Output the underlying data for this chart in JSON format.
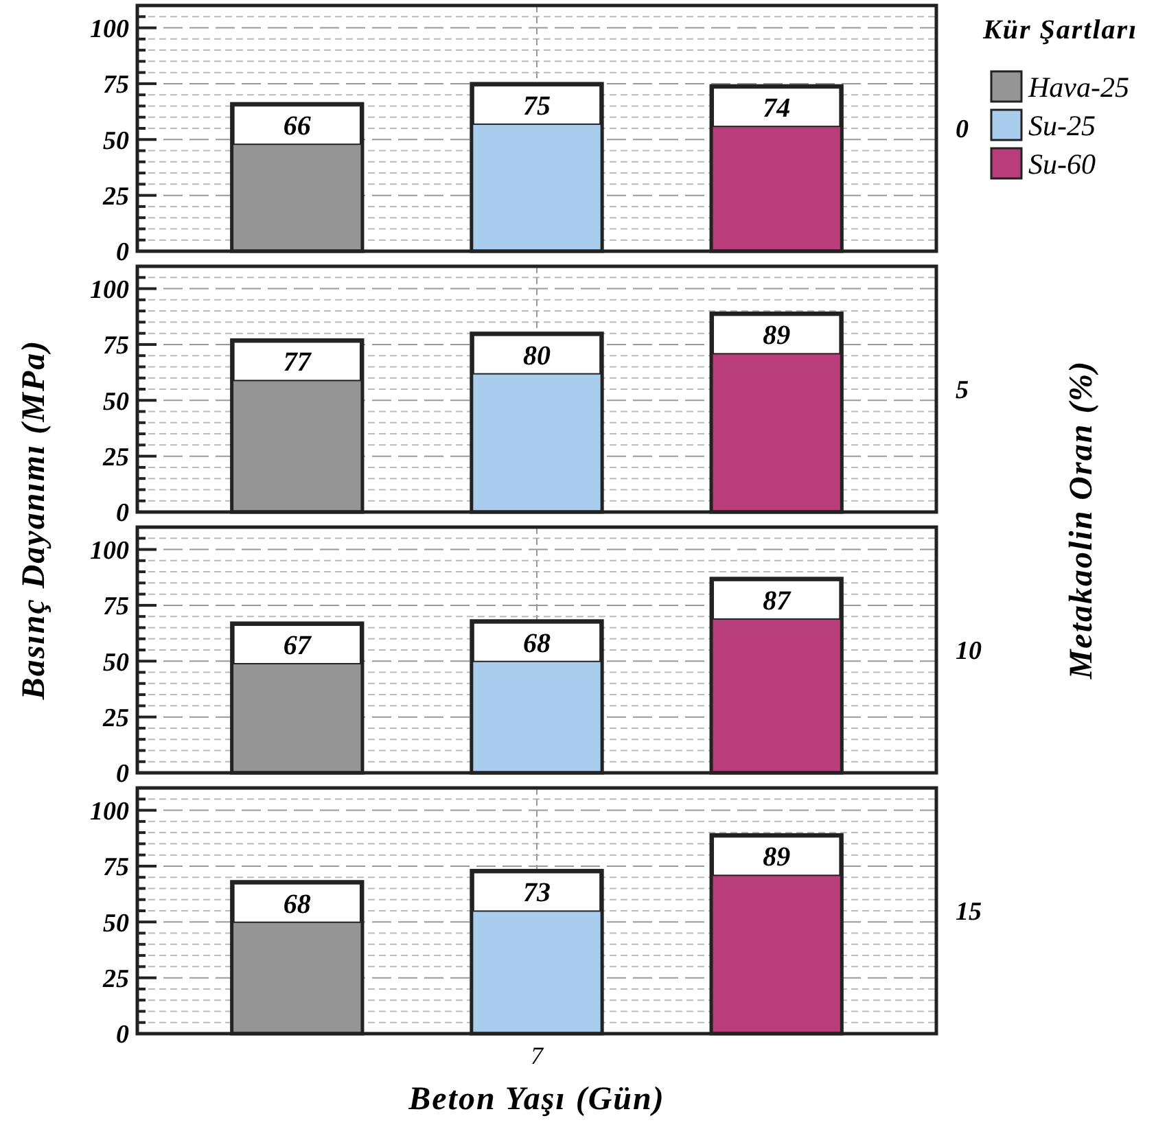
{
  "chart_data": [
    {
      "type": "bar",
      "annotations": [
        "0"
      ],
      "ylabel": "Basınç Dayanımı  (MPa)",
      "y2label": "Metakaolin Oran (%)",
      "legend_title": "Kür Şartları",
      "legend": "right",
      "categories": [
        null
      ],
      "series": [
        {
          "name": "Hava-25",
          "color": "#959595",
          "values": [
            66
          ]
        },
        {
          "name": "Su-25",
          "color": "#aacdee",
          "values": [
            75
          ]
        },
        {
          "name": "Su-60",
          "color": "#b83d7a",
          "values": [
            74
          ]
        }
      ],
      "ylim": [
        0,
        110
      ],
      "yticks": [
        0,
        {
          "value": 5,
          "label": null
        },
        {
          "value": 10,
          "label": null
        },
        {
          "value": 15,
          "label": null
        },
        {
          "value": 20,
          "label": null
        },
        25,
        {
          "value": 30,
          "label": null
        },
        {
          "value": 35,
          "label": null
        },
        {
          "value": 40,
          "label": null
        },
        {
          "value": 45,
          "label": null
        },
        50,
        {
          "value": 55,
          "label": null
        },
        {
          "value": 60,
          "label": null
        },
        {
          "value": 65,
          "label": null
        },
        {
          "value": 70,
          "label": null
        },
        75,
        {
          "value": 80,
          "label": null
        },
        {
          "value": 85,
          "label": null
        },
        {
          "value": 90,
          "label": null
        },
        {
          "value": 95,
          "label": null
        },
        100,
        {
          "value": 105,
          "label": null
        }
      ],
      "grid": true,
      "data_labels": true,
      "tick_labels": "y"
    },
    {
      "type": "bar",
      "annotations": [
        "5"
      ],
      "categories": [
        null
      ],
      "series": [
        {
          "color": "#959595",
          "values": [
            77
          ]
        },
        {
          "color": "#aacdee",
          "values": [
            80
          ]
        },
        {
          "color": "#b83d7a",
          "values": [
            89
          ]
        }
      ],
      "ylim": [
        0,
        110
      ],
      "yticks": [
        0,
        {
          "value": 5,
          "label": null
        },
        {
          "value": 10,
          "label": null
        },
        {
          "value": 15,
          "label": null
        },
        {
          "value": 20,
          "label": null
        },
        25,
        {
          "value": 30,
          "label": null
        },
        {
          "value": 35,
          "label": null
        },
        {
          "value": 40,
          "label": null
        },
        {
          "value": 45,
          "label": null
        },
        50,
        {
          "value": 55,
          "label": null
        },
        {
          "value": 60,
          "label": null
        },
        {
          "value": 65,
          "label": null
        },
        {
          "value": 70,
          "label": null
        },
        75,
        {
          "value": 80,
          "label": null
        },
        {
          "value": 85,
          "label": null
        },
        {
          "value": 90,
          "label": null
        },
        {
          "value": 95,
          "label": null
        },
        100,
        {
          "value": 105,
          "label": null
        }
      ],
      "grid": true,
      "data_labels": true,
      "tick_labels": "y"
    },
    {
      "type": "bar",
      "annotations": [
        "10"
      ],
      "categories": [
        null
      ],
      "series": [
        {
          "color": "#959595",
          "values": [
            67
          ]
        },
        {
          "color": "#aacdee",
          "values": [
            68
          ]
        },
        {
          "color": "#b83d7a",
          "values": [
            87
          ]
        }
      ],
      "ylim": [
        0,
        110
      ],
      "yticks": [
        0,
        {
          "value": 5,
          "label": null
        },
        {
          "value": 10,
          "label": null
        },
        {
          "value": 15,
          "label": null
        },
        {
          "value": 20,
          "label": null
        },
        25,
        {
          "value": 30,
          "label": null
        },
        {
          "value": 35,
          "label": null
        },
        {
          "value": 40,
          "label": null
        },
        {
          "value": 45,
          "label": null
        },
        50,
        {
          "value": 55,
          "label": null
        },
        {
          "value": 60,
          "label": null
        },
        {
          "value": 65,
          "label": null
        },
        {
          "value": 70,
          "label": null
        },
        75,
        {
          "value": 80,
          "label": null
        },
        {
          "value": 85,
          "label": null
        },
        {
          "value": 90,
          "label": null
        },
        {
          "value": 95,
          "label": null
        },
        100,
        {
          "value": 105,
          "label": null
        }
      ],
      "grid": true,
      "data_labels": true,
      "tick_labels": "y"
    },
    {
      "type": "bar",
      "annotations": [
        "15"
      ],
      "xlabel": "Beton Yaşı (Gün)",
      "categories": [
        "7"
      ],
      "series": [
        {
          "color": "#959595",
          "values": [
            68
          ]
        },
        {
          "color": "#aacdee",
          "values": [
            73
          ]
        },
        {
          "color": "#b83d7a",
          "values": [
            89
          ]
        }
      ],
      "ylim": [
        0,
        110
      ],
      "yticks": [
        0,
        {
          "value": 5,
          "label": null
        },
        {
          "value": 10,
          "label": null
        },
        {
          "value": 15,
          "label": null
        },
        {
          "value": 20,
          "label": null
        },
        25,
        {
          "value": 30,
          "label": null
        },
        {
          "value": 35,
          "label": null
        },
        {
          "value": 40,
          "label": null
        },
        {
          "value": 45,
          "label": null
        },
        50,
        {
          "value": 55,
          "label": null
        },
        {
          "value": 60,
          "label": null
        },
        {
          "value": 65,
          "label": null
        },
        {
          "value": 70,
          "label": null
        },
        75,
        {
          "value": 80,
          "label": null
        },
        {
          "value": 85,
          "label": null
        },
        {
          "value": 90,
          "label": null
        },
        {
          "value": 95,
          "label": null
        },
        100,
        {
          "value": 105,
          "label": null
        }
      ],
      "grid": true,
      "data_labels": true
    }
  ]
}
